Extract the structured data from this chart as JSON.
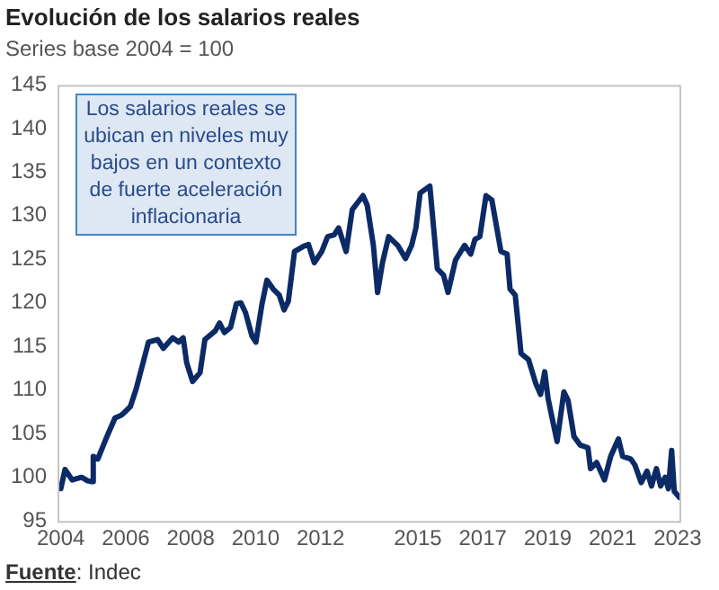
{
  "chart_data": {
    "type": "line",
    "title": "Evolución de los salarios reales",
    "subtitle": "Series base 2004 = 100",
    "annotations": [
      "Los salarios reales se ubican en niveles muy bajos en un contexto de fuerte aceleración inflacionaria",
      "Fuente: Indec"
    ],
    "x": [
      2004.0,
      2004.13,
      2004.35,
      2004.64,
      2004.83,
      2004.96,
      2005.0,
      2005.14,
      2005.39,
      2005.67,
      2005.85,
      2005.95,
      2006.14,
      2006.32,
      2006.7,
      2006.98,
      2007.16,
      2007.45,
      2007.63,
      2007.77,
      2007.88,
      2008.06,
      2008.29,
      2008.44,
      2008.76,
      2008.89,
      2009.04,
      2009.23,
      2009.41,
      2009.55,
      2009.69,
      2009.89,
      2010.01,
      2010.2,
      2010.35,
      2010.54,
      2010.73,
      2010.88,
      2011.01,
      2011.2,
      2011.48,
      2011.63,
      2011.81,
      2012.04,
      2012.22,
      2012.42,
      2012.56,
      2012.79,
      2012.98,
      2013.31,
      2013.44,
      2013.63,
      2013.76,
      2013.91,
      2014.1,
      2014.38,
      2014.62,
      2014.81,
      2014.94,
      2015.07,
      2015.37,
      2015.6,
      2015.79,
      2015.93,
      2016.16,
      2016.44,
      2016.63,
      2016.76,
      2016.91,
      2017.1,
      2017.28,
      2017.56,
      2017.75,
      2017.84,
      2018.0,
      2018.18,
      2018.41,
      2018.63,
      2018.78,
      2018.91,
      2019.01,
      2019.12,
      2019.29,
      2019.5,
      2019.63,
      2019.81,
      2020.0,
      2020.24,
      2020.32,
      2020.51,
      2020.75,
      2020.94,
      2021.18,
      2021.31,
      2021.56,
      2021.69,
      2021.88,
      2022.06,
      2022.2,
      2022.35,
      2022.48,
      2022.62,
      2022.72,
      2022.82,
      2022.9,
      2023.06
    ],
    "series": [
      {
        "color": "#0b2a66",
        "values": [
          98.7,
          100.9,
          99.7,
          100.0,
          99.6,
          99.5,
          102.4,
          102.1,
          104.4,
          106.8,
          107.1,
          107.4,
          108.1,
          110.1,
          115.5,
          115.8,
          114.8,
          116.0,
          115.5,
          116.0,
          113.1,
          111.0,
          112.0,
          115.8,
          116.8,
          117.7,
          116.6,
          117.2,
          119.9,
          120.0,
          118.9,
          116.2,
          115.5,
          119.9,
          122.6,
          121.6,
          120.9,
          119.2,
          120.2,
          125.9,
          126.5,
          126.7,
          124.6,
          125.9,
          127.6,
          127.8,
          128.6,
          125.9,
          130.7,
          132.3,
          131.2,
          126.6,
          121.2,
          124.6,
          127.6,
          126.6,
          125.1,
          126.6,
          128.6,
          132.6,
          133.4,
          123.9,
          123.2,
          121.2,
          124.9,
          126.6,
          125.6,
          127.3,
          127.6,
          132.3,
          131.8,
          125.9,
          125.6,
          121.6,
          120.9,
          114.2,
          113.5,
          110.8,
          109.5,
          112.1,
          109.1,
          107.1,
          104.1,
          109.8,
          108.8,
          104.7,
          103.7,
          103.4,
          101.0,
          101.7,
          99.7,
          102.4,
          104.4,
          102.4,
          102.1,
          101.4,
          99.4,
          100.7,
          99.0,
          101.0,
          99.0,
          100.0,
          98.7,
          103.1,
          98.4,
          97.7
        ]
      }
    ],
    "xlim": [
      2003.9,
      2023.06
    ],
    "xticks": [
      2004,
      2006,
      2008,
      2010,
      2012,
      2015,
      2017,
      2019,
      2021,
      2023
    ],
    "ylim": [
      95,
      145
    ],
    "yticks": [
      95,
      100,
      105,
      110,
      115,
      120,
      125,
      130,
      135,
      140,
      145
    ],
    "grid": false,
    "legend": false,
    "marker": "none",
    "line_style": "solid"
  }
}
